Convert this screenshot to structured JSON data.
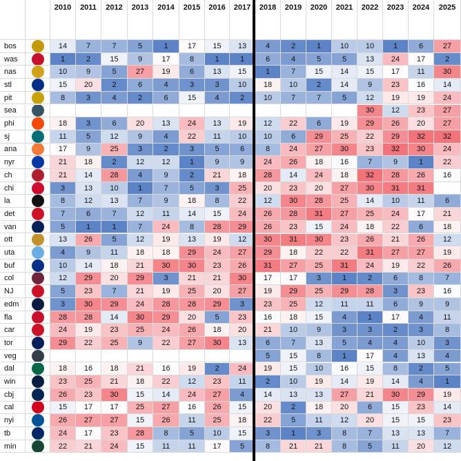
{
  "years": [
    "2010",
    "2011",
    "2012",
    "2013",
    "2014",
    "2015",
    "2016",
    "2017",
    "2018",
    "2019",
    "2020",
    "2021",
    "2022",
    "2023",
    "2024",
    "2025"
  ],
  "teams": [
    {
      "code": "bos",
      "logo_icon": "bruins-logo-icon",
      "logo_color": "#c49a00",
      "ranks": [
        "14",
        "7",
        "7",
        "5",
        "1",
        "17",
        "15",
        "13",
        "4",
        "2",
        "1",
        "10",
        "10",
        "1",
        "6",
        "27"
      ]
    },
    {
      "code": "was",
      "logo_icon": "capitals-logo-icon",
      "logo_color": "#c8102e",
      "ranks": [
        "1",
        "2",
        "15",
        "9",
        "17",
        "8",
        "1",
        "1",
        "6",
        "4",
        "5",
        "5",
        "13",
        "24",
        "17",
        "2"
      ]
    },
    {
      "code": "nas",
      "logo_icon": "predators-logo-icon",
      "logo_color": "#d4a017",
      "ranks": [
        "10",
        "9",
        "5",
        "27",
        "19",
        "6",
        "13",
        "15",
        "1",
        "7",
        "15",
        "14",
        "15",
        "17",
        "11",
        "30"
      ]
    },
    {
      "code": "stl",
      "logo_icon": "blues-logo-icon",
      "logo_color": "#002f87",
      "ranks": [
        "15",
        "20",
        "2",
        "6",
        "4",
        "3",
        "3",
        "10",
        "18",
        "10",
        "2",
        "14",
        "9",
        "23",
        "16",
        "14"
      ]
    },
    {
      "code": "pit",
      "logo_icon": "penguins-logo-icon",
      "logo_color": "#c8a200",
      "ranks": [
        "8",
        "3",
        "4",
        "2",
        "6",
        "15",
        "4",
        "2",
        "10",
        "7",
        "7",
        "5",
        "12",
        "19",
        "19",
        "24"
      ]
    },
    {
      "code": "sea",
      "logo_icon": "kraken-logo-icon",
      "logo_color": "#355464",
      "ranks": [
        "",
        "",
        "",
        "",
        "",
        "",
        "",
        "",
        "",
        "",
        "",
        "",
        "30",
        "12",
        "23",
        "27"
      ]
    },
    {
      "code": "phi",
      "logo_icon": "flyers-logo-icon",
      "logo_color": "#f74902",
      "ranks": [
        "18",
        "3",
        "6",
        "20",
        "13",
        "24",
        "13",
        "19",
        "12",
        "22",
        "6",
        "19",
        "29",
        "26",
        "20",
        "27"
      ]
    },
    {
      "code": "sj",
      "logo_icon": "sharks-logo-icon",
      "logo_color": "#006d75",
      "ranks": [
        "11",
        "5",
        "12",
        "9",
        "4",
        "22",
        "11",
        "10",
        "10",
        "6",
        "29",
        "25",
        "22",
        "29",
        "32",
        "32"
      ]
    },
    {
      "code": "ana",
      "logo_icon": "ducks-logo-icon",
      "logo_color": "#f47a38",
      "ranks": [
        "17",
        "9",
        "25",
        "3",
        "2",
        "3",
        "5",
        "6",
        "8",
        "24",
        "27",
        "30",
        "23",
        "32",
        "30",
        "24"
      ]
    },
    {
      "code": "nyr",
      "logo_icon": "rangers-logo-icon",
      "logo_color": "#0038a8",
      "ranks": [
        "21",
        "18",
        "2",
        "12",
        "12",
        "1",
        "9",
        "9",
        "24",
        "26",
        "18",
        "16",
        "7",
        "9",
        "1",
        "22"
      ]
    },
    {
      "code": "ch",
      "logo_icon": "canadiens-logo-icon",
      "logo_color": "#af1e2d",
      "ranks": [
        "21",
        "14",
        "28",
        "4",
        "9",
        "2",
        "21",
        "18",
        "28",
        "14",
        "24",
        "18",
        "32",
        "28",
        "26",
        "16"
      ]
    },
    {
      "code": "chi",
      "logo_icon": "blackhawks-logo-icon",
      "logo_color": "#cf0a2c",
      "ranks": [
        "3",
        "13",
        "10",
        "1",
        "7",
        "5",
        "3",
        "25",
        "20",
        "23",
        "20",
        "27",
        "30",
        "31",
        "31",
        ""
      ]
    },
    {
      "code": "la",
      "logo_icon": "kings-logo-icon",
      "logo_color": "#111111",
      "ranks": [
        "8",
        "12",
        "13",
        "7",
        "9",
        "18",
        "8",
        "22",
        "12",
        "30",
        "28",
        "25",
        "14",
        "10",
        "11",
        "6"
      ]
    },
    {
      "code": "det",
      "logo_icon": "red-wings-logo-icon",
      "logo_color": "#ce1126",
      "ranks": [
        "7",
        "6",
        "7",
        "12",
        "11",
        "14",
        "15",
        "24",
        "26",
        "28",
        "31",
        "27",
        "25",
        "24",
        "17",
        "21"
      ]
    },
    {
      "code": "van",
      "logo_icon": "canucks-logo-icon",
      "logo_color": "#00205b",
      "ranks": [
        "5",
        "1",
        "1",
        "7",
        "24",
        "8",
        "28",
        "29",
        "26",
        "23",
        "15",
        "24",
        "18",
        "22",
        "6",
        "18"
      ]
    },
    {
      "code": "ott",
      "logo_icon": "senators-logo-icon",
      "logo_color": "#c2912c",
      "ranks": [
        "13",
        "26",
        "5",
        "12",
        "19",
        "13",
        "19",
        "12",
        "30",
        "31",
        "30",
        "23",
        "26",
        "21",
        "26",
        "12"
      ]
    },
    {
      "code": "uta",
      "logo_icon": "utah-logo-icon",
      "logo_color": "#6cace4",
      "ranks": [
        "4",
        "9",
        "11",
        "18",
        "18",
        "29",
        "24",
        "27",
        "29",
        "18",
        "22",
        "22",
        "31",
        "27",
        "27",
        "19"
      ]
    },
    {
      "code": "buf",
      "logo_icon": "sabres-logo-icon",
      "logo_color": "#003087",
      "ranks": [
        "10",
        "14",
        "18",
        "21",
        "30",
        "30",
        "23",
        "26",
        "31",
        "27",
        "25",
        "31",
        "24",
        "19",
        "22",
        "26"
      ]
    },
    {
      "code": "col",
      "logo_icon": "avalanche-logo-icon",
      "logo_color": "#6f263d",
      "ranks": [
        "12",
        "29",
        "20",
        "29",
        "3",
        "21",
        "21",
        "30",
        "17",
        "17",
        "3",
        "1",
        "2",
        "6",
        "8",
        "7"
      ]
    },
    {
      "code": "NJ",
      "logo_icon": "devils-logo-icon",
      "logo_color": "#ce1126",
      "ranks": [
        "5",
        "23",
        "7",
        "21",
        "19",
        "25",
        "20",
        "27",
        "19",
        "29",
        "25",
        "29",
        "28",
        "3",
        "23",
        "16"
      ]
    },
    {
      "code": "edm",
      "logo_icon": "oilers-logo-icon",
      "logo_color": "#041e42",
      "ranks": [
        "3",
        "30",
        "29",
        "24",
        "28",
        "28",
        "29",
        "3",
        "23",
        "25",
        "12",
        "11",
        "11",
        "6",
        "9",
        "9"
      ]
    },
    {
      "code": "fla",
      "logo_icon": "panthers-logo-icon",
      "logo_color": "#c8102e",
      "ranks": [
        "28",
        "28",
        "14",
        "30",
        "29",
        "20",
        "5",
        "23",
        "16",
        "18",
        "15",
        "4",
        "1",
        "17",
        "4",
        "11"
      ]
    },
    {
      "code": "car",
      "logo_icon": "hurricanes-logo-icon",
      "logo_color": "#ce1126",
      "ranks": [
        "24",
        "19",
        "23",
        "25",
        "24",
        "26",
        "18",
        "20",
        "21",
        "10",
        "9",
        "3",
        "3",
        "2",
        "3",
        "8"
      ]
    },
    {
      "code": "tor",
      "logo_icon": "maple-leafs-logo-icon",
      "logo_color": "#00205b",
      "ranks": [
        "29",
        "22",
        "25",
        "9",
        "22",
        "27",
        "30",
        "13",
        "6",
        "7",
        "13",
        "5",
        "4",
        "4",
        "10",
        "3"
      ]
    },
    {
      "code": "veg",
      "logo_icon": "golden-knights-logo-icon",
      "logo_color": "#333f48",
      "ranks": [
        "",
        "",
        "",
        "",
        "",
        "",
        "",
        "",
        "5",
        "15",
        "8",
        "1",
        "17",
        "4",
        "13",
        "4"
      ]
    },
    {
      "code": "dal",
      "logo_icon": "stars-logo-icon",
      "logo_color": "#006847",
      "ranks": [
        "18",
        "16",
        "18",
        "21",
        "16",
        "19",
        "2",
        "24",
        "19",
        "15",
        "10",
        "16",
        "15",
        "8",
        "2",
        "5"
      ]
    },
    {
      "code": "win",
      "logo_icon": "jets-logo-icon",
      "logo_color": "#041e42",
      "ranks": [
        "23",
        "25",
        "21",
        "18",
        "22",
        "12",
        "23",
        "11",
        "2",
        "10",
        "19",
        "14",
        "19",
        "14",
        "4",
        "1"
      ]
    },
    {
      "code": "cbj",
      "logo_icon": "blue-jackets-logo-icon",
      "logo_color": "#002654",
      "ranks": [
        "26",
        "23",
        "30",
        "15",
        "14",
        "24",
        "27",
        "4",
        "14",
        "13",
        "13",
        "27",
        "21",
        "30",
        "29",
        "19"
      ]
    },
    {
      "code": "cal",
      "logo_icon": "flames-logo-icon",
      "logo_color": "#d2001c",
      "ranks": [
        "15",
        "17",
        "17",
        "25",
        "27",
        "16",
        "26",
        "15",
        "20",
        "2",
        "18",
        "20",
        "6",
        "15",
        "23",
        "14"
      ]
    },
    {
      "code": "nyi",
      "logo_icon": "islanders-logo-icon",
      "logo_color": "#00539b",
      "ranks": [
        "26",
        "27",
        "27",
        "15",
        "26",
        "11",
        "25",
        "18",
        "22",
        "5",
        "11",
        "12",
        "20",
        "15",
        "15",
        "23"
      ]
    },
    {
      "code": "tb",
      "logo_icon": "lightning-logo-icon",
      "logo_color": "#002868",
      "ranks": [
        "24",
        "17",
        "23",
        "28",
        "8",
        "5",
        "10",
        "15",
        "3",
        "1",
        "3",
        "8",
        "7",
        "13",
        "13",
        "7"
      ]
    },
    {
      "code": "min",
      "logo_icon": "wild-logo-icon",
      "logo_color": "#154734",
      "ranks": [
        "22",
        "21",
        "24",
        "15",
        "11",
        "11",
        "17",
        "5",
        "8",
        "21",
        "21",
        "8",
        "5",
        "11",
        "20",
        "12"
      ]
    }
  ],
  "colors": {
    "best": "#5b83c6",
    "mid": "#ffffff",
    "worst": "#f2737a"
  }
}
